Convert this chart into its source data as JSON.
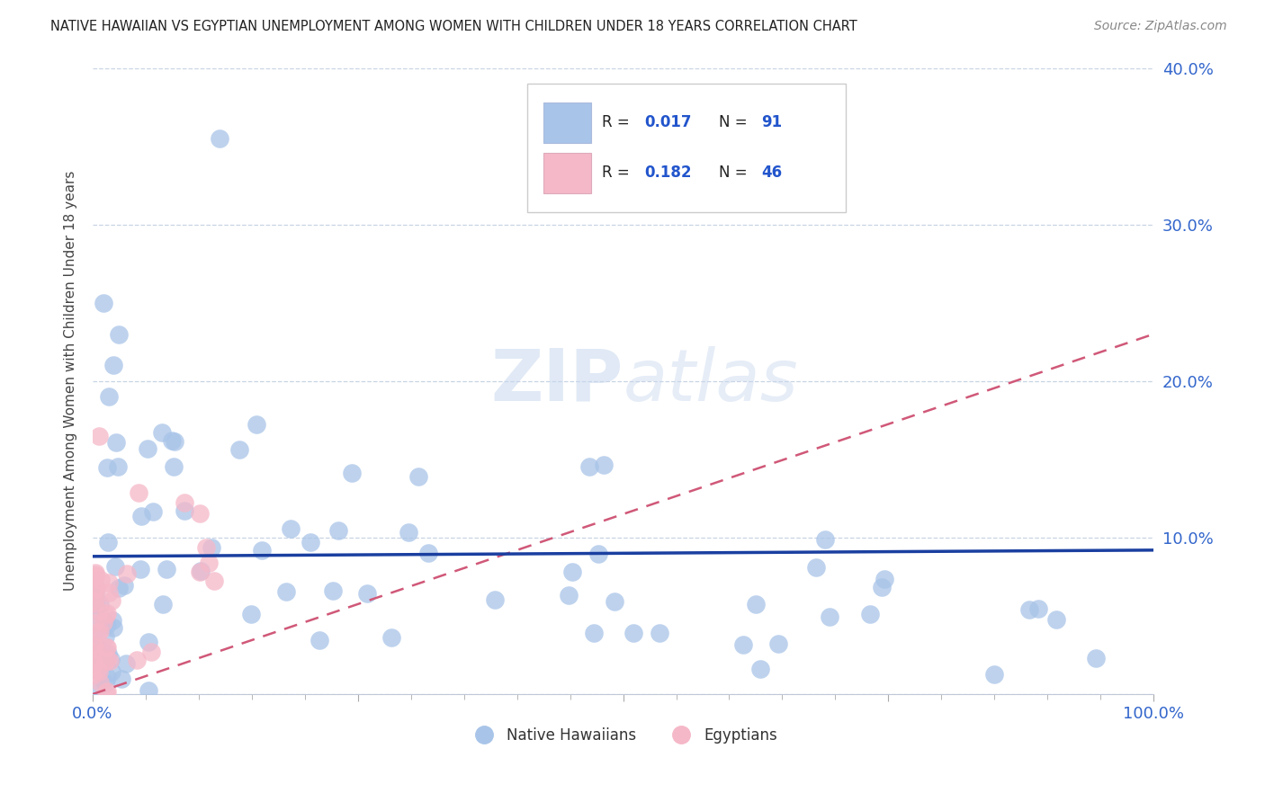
{
  "title": "NATIVE HAWAIIAN VS EGYPTIAN UNEMPLOYMENT AMONG WOMEN WITH CHILDREN UNDER 18 YEARS CORRELATION CHART",
  "source": "Source: ZipAtlas.com",
  "ylabel": "Unemployment Among Women with Children Under 18 years",
  "xlim": [
    0,
    1.0
  ],
  "ylim": [
    0,
    0.4
  ],
  "ytick_positions": [
    0.0,
    0.1,
    0.2,
    0.3,
    0.4
  ],
  "yticklabels_right": [
    "",
    "10.0%",
    "20.0%",
    "30.0%",
    "40.0%"
  ],
  "xtick_positions": [
    0.0,
    0.25,
    0.5,
    0.75,
    1.0
  ],
  "xticklabels": [
    "0.0%",
    "",
    "",
    "",
    "100.0%"
  ],
  "native_hawaiian_color": "#a8c4e8",
  "native_hawaiian_edge": "#7aaad4",
  "egyptian_color": "#f5b8c8",
  "egyptian_edge": "#e090a8",
  "nh_line_color": "#1a3fa0",
  "eg_line_color": "#d05878",
  "tick_label_color": "#3366cc",
  "grid_color": "#c8d4e4",
  "background_color": "#ffffff",
  "legend_r1": "0.017",
  "legend_n1": "91",
  "legend_r2": "0.182",
  "legend_n2": "46",
  "nh_line_y0": 0.088,
  "nh_line_y1": 0.092,
  "eg_line_y0": 0.0,
  "eg_line_y1": 0.23,
  "eg_line_x0": 0.0,
  "eg_line_x1": 1.0
}
